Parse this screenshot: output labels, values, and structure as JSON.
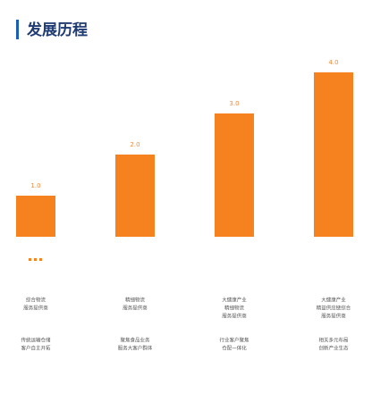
{
  "chart_data": {
    "type": "bar",
    "title": "发展历程",
    "values": [
      1.0,
      2.0,
      3.0,
      4.0
    ],
    "value_labels": [
      "1.0",
      "2.0",
      "3.0",
      "4.0"
    ],
    "color": "#f5821f",
    "ylim": [
      -1,
      5
    ],
    "descriptions": [
      {
        "positioning": [
          "综合物流",
          "服务提供商"
        ],
        "business": [
          "传统运输仓储",
          "客户自主开拓"
        ]
      },
      {
        "positioning": [
          "精细物流",
          "服务提供商"
        ],
        "business": [
          "聚焦食品业务",
          "服务大客户群体"
        ]
      },
      {
        "positioning": [
          "大健康产业",
          "精细物流",
          "服务提供商"
        ],
        "business": [
          "行业客户聚焦",
          "仓配一体化"
        ]
      },
      {
        "positioning": [
          "大健康产业",
          "精益供应链综合",
          "服务提供商"
        ],
        "business": [
          "相关多元布局",
          "创新产业生态"
        ]
      }
    ]
  }
}
